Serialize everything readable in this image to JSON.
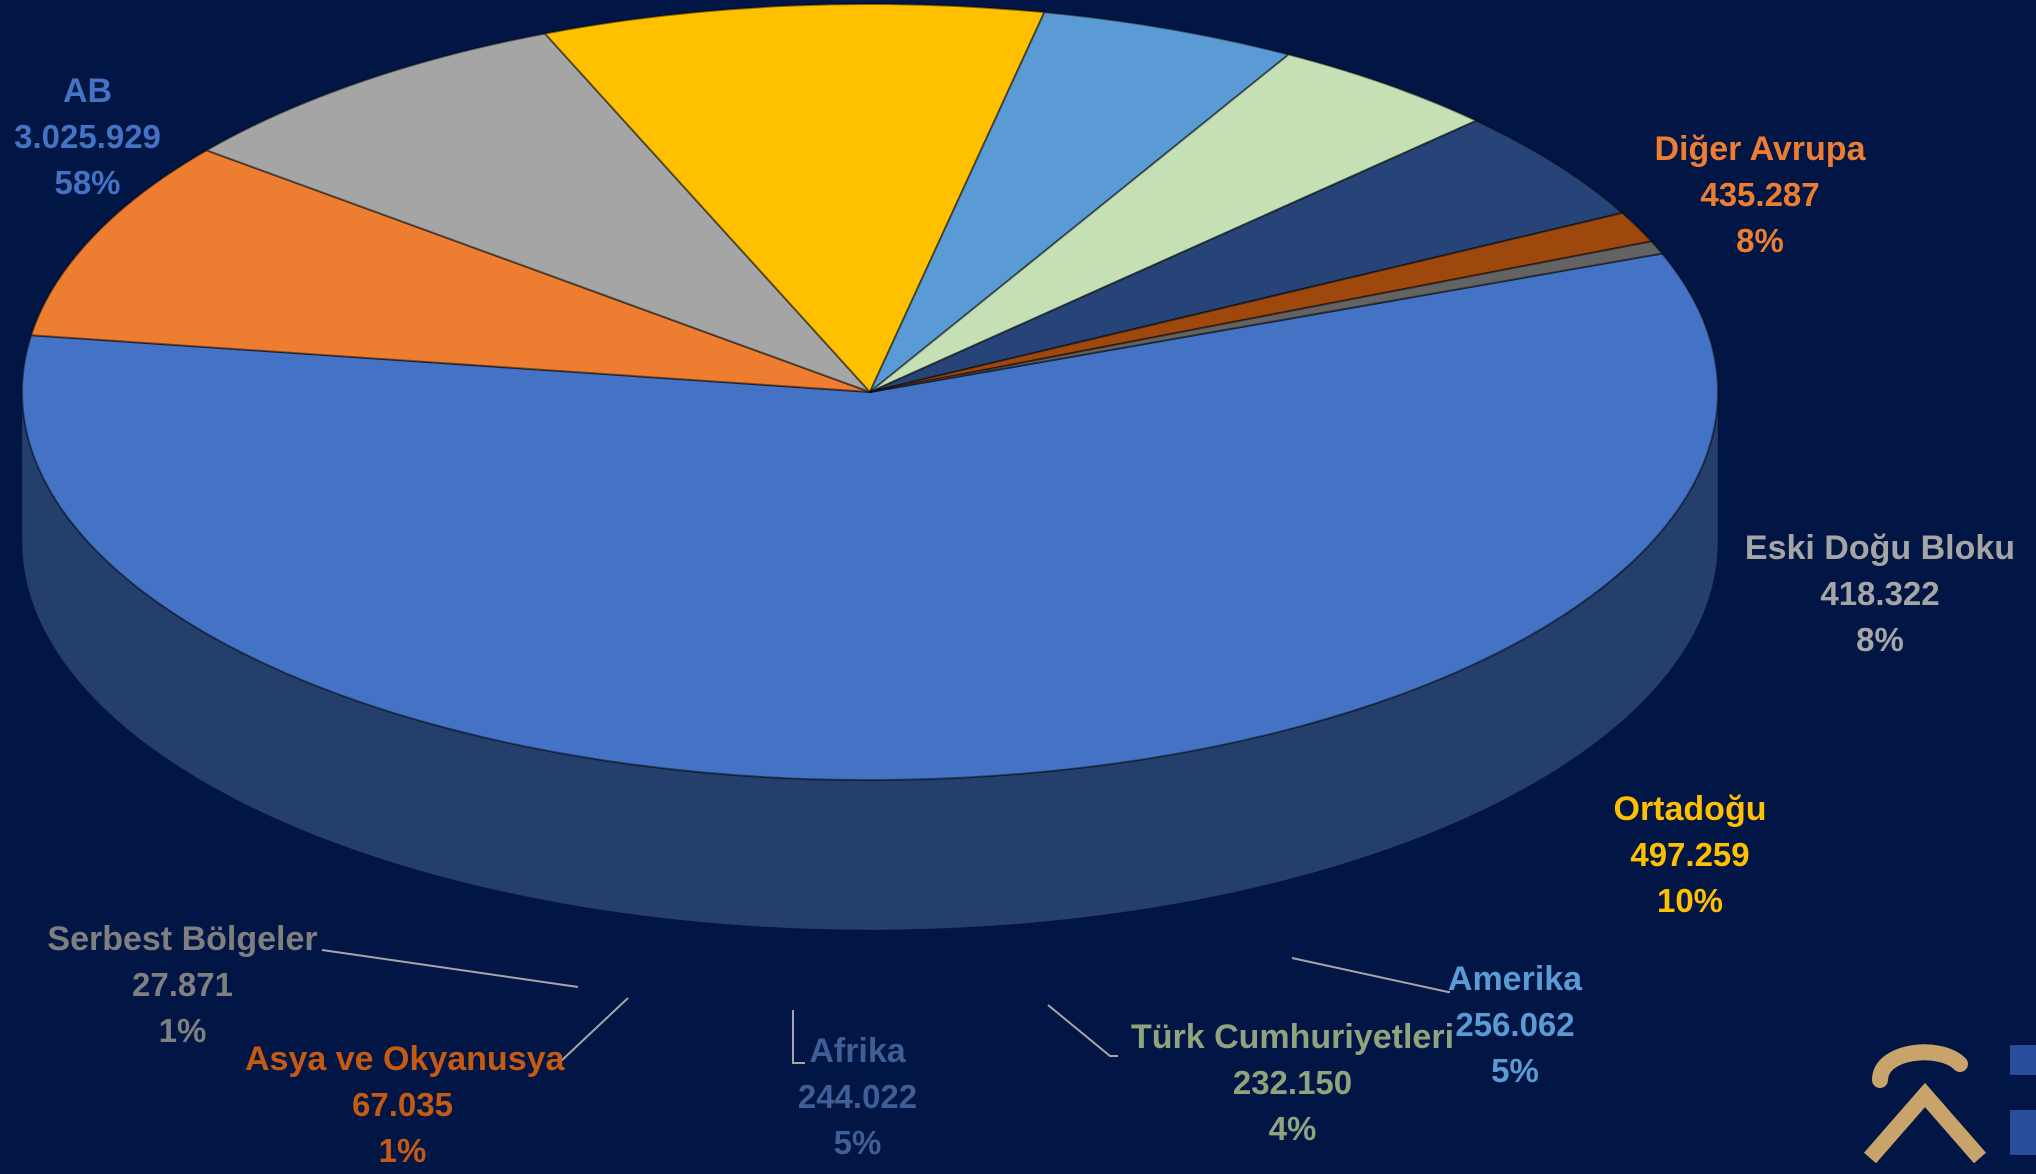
{
  "chart_data": {
    "type": "pie",
    "title": "",
    "slices": [
      {
        "name": "AB",
        "value_label": "3.025.929",
        "value": 3025929,
        "percent_label": "58%",
        "color": "#4472C4"
      },
      {
        "name": "Diğer Avrupa",
        "value_label": "435.287",
        "value": 435287,
        "percent_label": "8%",
        "color": "#ED7D31"
      },
      {
        "name": "Eski Doğu Bloku",
        "value_label": "418.322",
        "value": 418322,
        "percent_label": "8%",
        "color": "#A5A5A5"
      },
      {
        "name": "Ortadoğu",
        "value_label": "497.259",
        "value": 497259,
        "percent_label": "10%",
        "color": "#FFC000"
      },
      {
        "name": "Amerika",
        "value_label": "256.062",
        "value": 256062,
        "percent_label": "5%",
        "color": "#5B9BD5"
      },
      {
        "name": "Türk Cumhuriyetleri",
        "value_label": "232.150",
        "value": 232150,
        "percent_label": "4%",
        "color": "#C5E0B4"
      },
      {
        "name": "Afrika",
        "value_label": "244.022",
        "value": 244022,
        "percent_label": "5%",
        "color": "#264478"
      },
      {
        "name": "Asya ve Okyanusya",
        "value_label": "67.035",
        "value": 67035,
        "percent_label": "1%",
        "color": "#9E480E"
      },
      {
        "name": "Serbest Bölgeler",
        "value_label": "27.871",
        "value": 27871,
        "percent_label": "1%",
        "color": "#636363"
      }
    ],
    "label_colors": [
      "#4472C4",
      "#ED7D31",
      "#A5A5A5",
      "#FFC000",
      "#5B9BD5",
      "#8FA37E",
      "#3F5E96",
      "#C55A11",
      "#7F7F7F"
    ],
    "legend": "none"
  },
  "background_color": "#021645",
  "logo": {
    "icon": "brand-logo-icon",
    "color": "#C9A46A"
  }
}
